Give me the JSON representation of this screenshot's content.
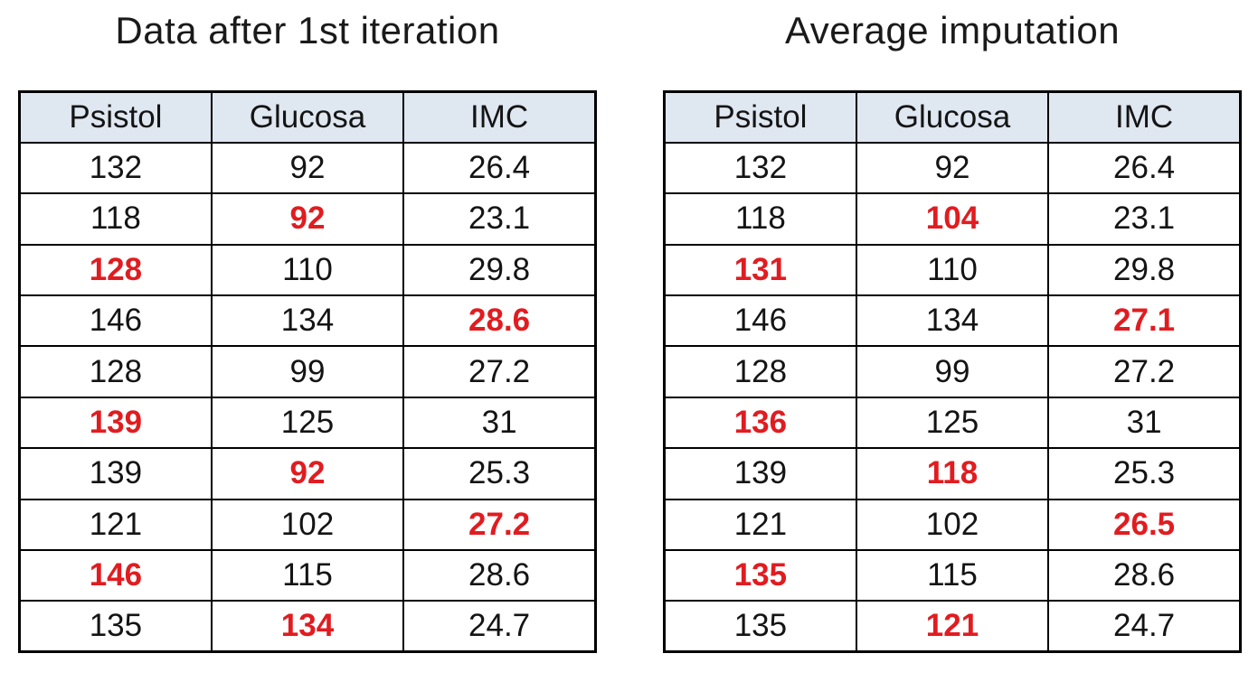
{
  "page": {
    "background": "#ffffff"
  },
  "colors": {
    "header_background": "#dfe7f1",
    "imputed_value_red": "#e11c20",
    "table_border": "#000000",
    "text": "#141414"
  },
  "chart_data": [
    {
      "type": "table",
      "title": "Data after 1st iteration",
      "columns": [
        "Psistol",
        "Glucosa",
        "IMC"
      ],
      "highlight_meaning": "imputed values shown in bold red",
      "rows": [
        [
          {
            "v": "132"
          },
          {
            "v": "92"
          },
          {
            "v": "26.4"
          }
        ],
        [
          {
            "v": "118"
          },
          {
            "v": "92",
            "imputed": true
          },
          {
            "v": "23.1"
          }
        ],
        [
          {
            "v": "128",
            "imputed": true
          },
          {
            "v": "110"
          },
          {
            "v": "29.8"
          }
        ],
        [
          {
            "v": "146"
          },
          {
            "v": "134"
          },
          {
            "v": "28.6",
            "imputed": true
          }
        ],
        [
          {
            "v": "128"
          },
          {
            "v": "99"
          },
          {
            "v": "27.2"
          }
        ],
        [
          {
            "v": "139",
            "imputed": true
          },
          {
            "v": "125"
          },
          {
            "v": "31"
          }
        ],
        [
          {
            "v": "139"
          },
          {
            "v": "92",
            "imputed": true
          },
          {
            "v": "25.3"
          }
        ],
        [
          {
            "v": "121"
          },
          {
            "v": "102"
          },
          {
            "v": "27.2",
            "imputed": true
          }
        ],
        [
          {
            "v": "146",
            "imputed": true
          },
          {
            "v": "115"
          },
          {
            "v": "28.6"
          }
        ],
        [
          {
            "v": "135"
          },
          {
            "v": "134",
            "imputed": true
          },
          {
            "v": "24.7"
          }
        ]
      ]
    },
    {
      "type": "table",
      "title": "Average imputation",
      "columns": [
        "Psistol",
        "Glucosa",
        "IMC"
      ],
      "highlight_meaning": "imputed values shown in bold red",
      "rows": [
        [
          {
            "v": "132"
          },
          {
            "v": "92"
          },
          {
            "v": "26.4"
          }
        ],
        [
          {
            "v": "118"
          },
          {
            "v": "104",
            "imputed": true
          },
          {
            "v": "23.1"
          }
        ],
        [
          {
            "v": "131",
            "imputed": true
          },
          {
            "v": "110"
          },
          {
            "v": "29.8"
          }
        ],
        [
          {
            "v": "146"
          },
          {
            "v": "134"
          },
          {
            "v": "27.1",
            "imputed": true
          }
        ],
        [
          {
            "v": "128"
          },
          {
            "v": "99"
          },
          {
            "v": "27.2"
          }
        ],
        [
          {
            "v": "136",
            "imputed": true
          },
          {
            "v": "125"
          },
          {
            "v": "31"
          }
        ],
        [
          {
            "v": "139"
          },
          {
            "v": "118",
            "imputed": true
          },
          {
            "v": "25.3"
          }
        ],
        [
          {
            "v": "121"
          },
          {
            "v": "102"
          },
          {
            "v": "26.5",
            "imputed": true
          }
        ],
        [
          {
            "v": "135",
            "imputed": true
          },
          {
            "v": "115"
          },
          {
            "v": "28.6"
          }
        ],
        [
          {
            "v": "135"
          },
          {
            "v": "121",
            "imputed": true
          },
          {
            "v": "24.7"
          }
        ]
      ]
    }
  ]
}
